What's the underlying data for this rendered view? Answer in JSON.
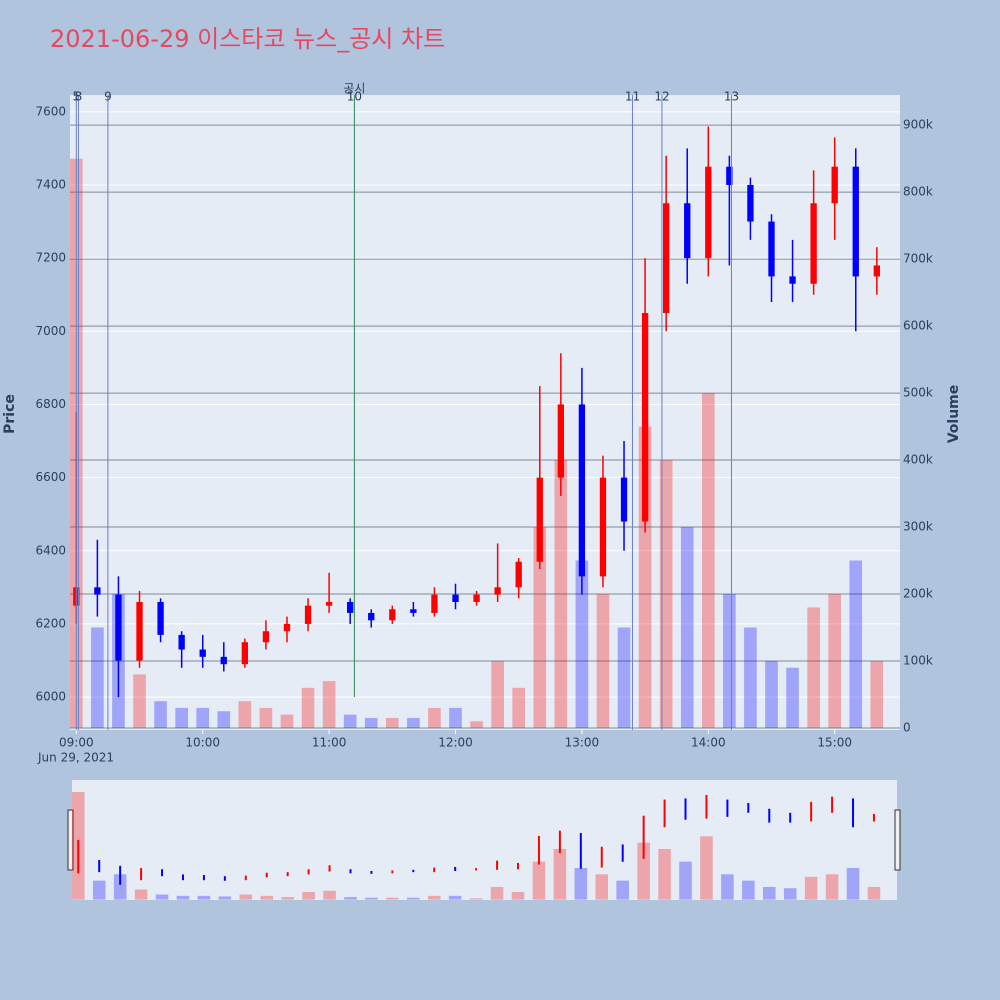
{
  "chart_data": {
    "type": "candlestick",
    "title": "2021-06-29 이스타코 뉴스_공시 차트",
    "date_label": "Jun 29, 2021",
    "ylabel": "Price",
    "y2label": "Volume",
    "x": [
      "09:00",
      "09:10",
      "09:20",
      "09:30",
      "09:40",
      "09:50",
      "10:00",
      "10:10",
      "10:20",
      "10:30",
      "10:40",
      "10:50",
      "11:00",
      "11:10",
      "11:20",
      "11:30",
      "11:40",
      "11:50",
      "12:00",
      "12:10",
      "12:20",
      "12:30",
      "12:40",
      "12:50",
      "13:00",
      "13:10",
      "13:20",
      "13:30",
      "13:40",
      "13:50",
      "14:00",
      "14:10",
      "14:20",
      "14:30",
      "14:40",
      "14:50",
      "15:00",
      "15:10",
      "15:20"
    ],
    "open": [
      6250,
      6300,
      6280,
      6100,
      6260,
      6170,
      6130,
      6110,
      6090,
      6150,
      6180,
      6200,
      6250,
      6260,
      6230,
      6210,
      6240,
      6230,
      6280,
      6260,
      6280,
      6300,
      6370,
      6600,
      6800,
      6330,
      6600,
      6480,
      7050,
      7350,
      7200,
      7450,
      7400,
      7300,
      7150,
      7130,
      7350,
      7450,
      7150
    ],
    "high": [
      6780,
      6430,
      6330,
      6290,
      6270,
      6180,
      6170,
      6150,
      6160,
      6210,
      6220,
      6270,
      6340,
      6270,
      6240,
      6250,
      6260,
      6300,
      6310,
      6290,
      6420,
      6380,
      6850,
      6940,
      6900,
      6660,
      6700,
      7200,
      7480,
      7500,
      7560,
      7480,
      7420,
      7320,
      7250,
      7440,
      7530,
      7500,
      7230
    ],
    "low": [
      6200,
      6220,
      6000,
      6080,
      6150,
      6080,
      6080,
      6070,
      6080,
      6130,
      6150,
      6180,
      6230,
      6200,
      6190,
      6200,
      6220,
      6220,
      6240,
      6250,
      6260,
      6270,
      6350,
      6550,
      6280,
      6300,
      6400,
      6450,
      7000,
      7130,
      7150,
      7180,
      7250,
      7080,
      7080,
      7100,
      7250,
      7000,
      7100
    ],
    "close": [
      6300,
      6280,
      6100,
      6260,
      6170,
      6130,
      6110,
      6090,
      6150,
      6180,
      6200,
      6250,
      6260,
      6230,
      6210,
      6240,
      6230,
      6280,
      6260,
      6280,
      6300,
      6370,
      6600,
      6800,
      6330,
      6600,
      6480,
      7050,
      7350,
      7200,
      7450,
      7400,
      7300,
      7150,
      7130,
      7350,
      7450,
      7150,
      7180
    ],
    "volume": [
      850000,
      150000,
      200000,
      80000,
      40000,
      30000,
      30000,
      25000,
      40000,
      30000,
      20000,
      60000,
      70000,
      20000,
      15000,
      15000,
      15000,
      30000,
      30000,
      10000,
      100000,
      60000,
      300000,
      400000,
      250000,
      200000,
      150000,
      450000,
      400000,
      300000,
      500000,
      200000,
      150000,
      100000,
      90000,
      180000,
      200000,
      250000,
      100000
    ],
    "up_color": "#ff0000",
    "down_color": "#0000ff",
    "xlim": [
      "08:57",
      "15:31"
    ],
    "xticks": [
      "09:00",
      "10:00",
      "11:00",
      "12:00",
      "13:00",
      "14:00",
      "15:00"
    ],
    "ylim": [
      5910,
      7646
    ],
    "yticks": [
      6000,
      6200,
      6400,
      6600,
      6800,
      7000,
      7200,
      7400,
      7600
    ],
    "y2lim": [
      -3000,
      945000
    ],
    "y2ticks": [
      0,
      {
        "value": 100000,
        "label": "100k"
      },
      {
        "value": 200000,
        "label": "200k"
      },
      {
        "value": 300000,
        "label": "300k"
      },
      {
        "value": 400000,
        "label": "400k"
      },
      {
        "value": 500000,
        "label": "500k"
      },
      {
        "value": 600000,
        "label": "600k"
      },
      {
        "value": 700000,
        "label": "700k"
      },
      {
        "value": 800000,
        "label": "800k"
      },
      {
        "value": 900000,
        "label": "900k"
      }
    ],
    "events": [
      {
        "label": "5",
        "x": "09:00"
      },
      {
        "label": "8",
        "x": "09:01"
      },
      {
        "label": "9",
        "x": "09:15"
      },
      {
        "label": "10",
        "x": "11:12",
        "note": "공시"
      },
      {
        "label": "11",
        "x": "13:24"
      },
      {
        "label": "12",
        "x": "13:38"
      },
      {
        "label": "13",
        "x": "14:11"
      }
    ]
  }
}
